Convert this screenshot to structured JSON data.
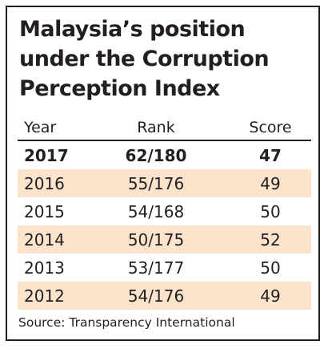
{
  "title_lines": [
    "Malaysia’s position",
    "under the Corruption",
    "Perception Index"
  ],
  "columns": {
    "year": "Year",
    "rank": "Rank",
    "score": "Score"
  },
  "source": "Source: Transparency International",
  "colors": {
    "shade": "#fbe3cc",
    "text": "#231f20",
    "border": "#231f20"
  },
  "chart_data": {
    "type": "table",
    "title": "Malaysia’s position under the Corruption Perception Index",
    "columns": [
      "Year",
      "Rank",
      "Score"
    ],
    "rows": [
      {
        "year": "2017",
        "rank": "62/180",
        "score": "47"
      },
      {
        "year": "2016",
        "rank": "55/176",
        "score": "49"
      },
      {
        "year": "2015",
        "rank": "54/168",
        "score": "50"
      },
      {
        "year": "2014",
        "rank": "50/175",
        "score": "52"
      },
      {
        "year": "2013",
        "rank": "53/177",
        "score": "50"
      },
      {
        "year": "2012",
        "rank": "54/176",
        "score": "49"
      }
    ]
  }
}
